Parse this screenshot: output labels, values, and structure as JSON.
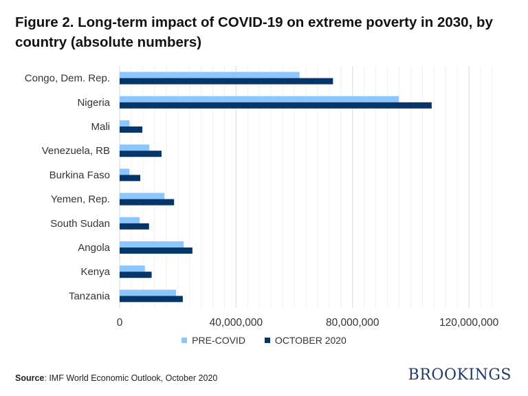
{
  "title": "Figure 2. Long-term impact of COVID-19 on extreme poverty in 2030, by country (absolute numbers)",
  "chart_data": {
    "type": "bar",
    "orientation": "horizontal",
    "title": "Figure 2. Long-term impact of COVID-19 on extreme poverty in 2030, by country (absolute numbers)",
    "categories": [
      "Congo, Dem. Rep.",
      "Nigeria",
      "Mali",
      "Venezuela, RB",
      "Burkina Faso",
      "Yemen, Rep.",
      "South Sudan",
      "Angola",
      "Kenya",
      "Tanzania"
    ],
    "series": [
      {
        "name": "PRE-COVID",
        "color": "#8cc6ff",
        "values": [
          61800000,
          95900000,
          3400000,
          10200000,
          3400000,
          15400000,
          6900000,
          22000000,
          8700000,
          19400000
        ]
      },
      {
        "name": "OCTOBER 2020",
        "color": "#06356a",
        "values": [
          73300000,
          107200000,
          7800000,
          14400000,
          7100000,
          18700000,
          10100000,
          25000000,
          11000000,
          21700000
        ]
      }
    ],
    "xlim": [
      0,
      128000000
    ],
    "xticks": [
      0,
      40000000,
      80000000,
      120000000
    ],
    "xtick_labels": [
      "0",
      "40,000,000",
      "80,000,000",
      "120,000,000"
    ],
    "grid": true,
    "legend": "bottom"
  },
  "source_label": "Source",
  "source_text": ": IMF World Economic Outlook, October 2020",
  "logo": "BROOKINGS"
}
